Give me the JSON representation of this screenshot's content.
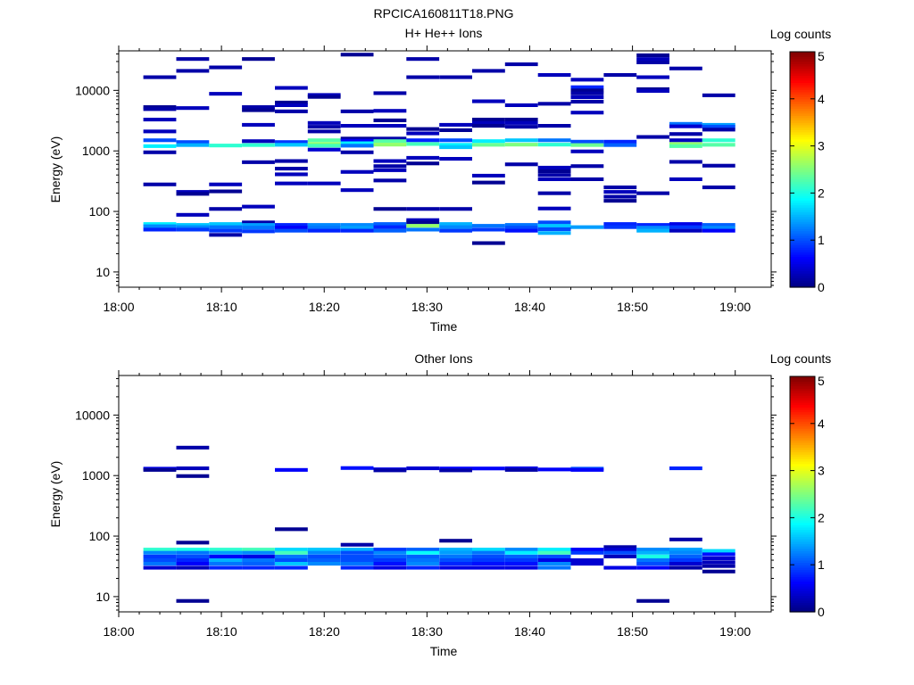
{
  "figure_title": "RPCICA160811T18.PNG",
  "colorbar": {
    "label": "Log counts",
    "ticks": [
      0,
      1,
      2,
      3,
      4,
      5
    ],
    "range": [
      0,
      5
    ],
    "colormap": "jet",
    "colors": [
      "#00007f",
      "#0000ff",
      "#007fff",
      "#00ffff",
      "#7fff7f",
      "#ffff00",
      "#ff7f00",
      "#ff0000",
      "#7f0000"
    ]
  },
  "chart_data": [
    {
      "type": "heatmap",
      "title": "H+ He++ Ions",
      "xlabel": "Time",
      "ylabel": "Energy (eV)",
      "x_ticks": [
        "18:00",
        "18:10",
        "18:20",
        "18:30",
        "18:40",
        "18:50",
        "19:00"
      ],
      "x_range_min": [
        0,
        63.5
      ],
      "y_scale": "log",
      "y_ticks": [
        "10",
        "100",
        "1000",
        "10000"
      ],
      "y_range": [
        5.6,
        45000
      ],
      "bin_width_min": 3.2,
      "bins": [
        {
          "t": 2.4,
          "e": [
            16500,
            5300,
            4900,
            3300,
            2100,
            1500,
            1200,
            950,
            280,
            62,
            57,
            50
          ],
          "c": [
            0.2,
            0.1,
            0.2,
            0.3,
            0.3,
            1.0,
            1.8,
            0.2,
            0.2,
            1.8,
            1.3,
            0.8
          ]
        },
        {
          "t": 5.6,
          "e": [
            33000,
            21000,
            5100,
            1400,
            1250,
            210,
            195,
            88,
            60,
            55,
            50
          ],
          "c": [
            0.2,
            0.2,
            0.3,
            1.0,
            1.5,
            0.3,
            0.1,
            0.3,
            1.6,
            1.3,
            0.9
          ]
        },
        {
          "t": 8.8,
          "e": [
            24000,
            8800,
            1230,
            280,
            215,
            110,
            62,
            55,
            48,
            41
          ],
          "c": [
            0.2,
            0.3,
            2.1,
            0.3,
            0.1,
            0.2,
            1.6,
            1.2,
            0.9,
            0.2
          ]
        },
        {
          "t": 12.0,
          "e": [
            33000,
            5300,
            4700,
            2700,
            1450,
            1250,
            650,
            120,
            66,
            60,
            54,
            47
          ],
          "c": [
            0.1,
            0.2,
            0.1,
            0.3,
            0.3,
            2.1,
            0.2,
            0.3,
            0.2,
            1.4,
            1.2,
            0.9
          ]
        },
        {
          "t": 15.2,
          "e": [
            11000,
            6300,
            5700,
            4500,
            1400,
            1260,
            680,
            510,
            410,
            290,
            60,
            54,
            48
          ],
          "c": [
            0.3,
            0.1,
            0.3,
            0.2,
            0.9,
            1.6,
            0.2,
            0.2,
            0.3,
            0.3,
            0.8,
            0.6,
            1.0
          ]
        },
        {
          "t": 18.4,
          "e": [
            8400,
            7800,
            2900,
            2500,
            2100,
            1500,
            1300,
            1220,
            1050,
            290,
            60,
            54,
            48
          ],
          "c": [
            0.3,
            0.1,
            0.3,
            0.2,
            0.2,
            2.3,
            2.6,
            2.2,
            0.4,
            0.3,
            1.3,
            1.2,
            0.8
          ]
        },
        {
          "t": 21.6,
          "e": [
            39000,
            4500,
            2600,
            1600,
            1480,
            1340,
            1220,
            950,
            450,
            225,
            60,
            54,
            48
          ],
          "c": [
            0.1,
            0.2,
            0.3,
            0.1,
            0.6,
            1.8,
            1.2,
            0.2,
            0.3,
            0.3,
            1.3,
            1.4,
            0.8
          ]
        },
        {
          "t": 24.8,
          "e": [
            9000,
            4600,
            3200,
            2600,
            1600,
            1450,
            1270,
            680,
            560,
            480,
            325,
            110,
            62,
            55,
            48
          ],
          "c": [
            0.2,
            0.3,
            0.1,
            0.3,
            0.2,
            2.3,
            2.6,
            0.3,
            0.2,
            0.3,
            0.2,
            0.1,
            1.1,
            0.8,
            1.1
          ]
        },
        {
          "t": 28.0,
          "e": [
            33000,
            16500,
            2300,
            1950,
            1500,
            1300,
            770,
            620,
            110,
            72,
            66,
            58,
            50
          ],
          "c": [
            0.2,
            0.2,
            0.1,
            0.3,
            0.8,
            2.2,
            0.3,
            0.1,
            0.2,
            0.3,
            0.1,
            2.6,
            1.2
          ]
        },
        {
          "t": 31.2,
          "e": [
            16500,
            2700,
            2200,
            1500,
            1260,
            1150,
            740,
            110,
            62,
            55,
            48
          ],
          "c": [
            0.2,
            0.3,
            0.1,
            1.0,
            1.8,
            1.6,
            0.3,
            0.2,
            1.5,
            1.3,
            0.9
          ]
        },
        {
          "t": 34.4,
          "e": [
            21000,
            6600,
            3300,
            2900,
            2600,
            1450,
            1260,
            390,
            300,
            58,
            50,
            30
          ],
          "c": [
            0.2,
            0.3,
            0.1,
            0.3,
            0.1,
            1.8,
            2.4,
            0.3,
            0.1,
            1.2,
            0.9,
            0.1
          ]
        },
        {
          "t": 37.6,
          "e": [
            27000,
            5700,
            3300,
            2900,
            2500,
            1500,
            1270,
            600,
            60,
            54,
            48
          ],
          "c": [
            0.2,
            0.3,
            0.1,
            0.3,
            0.2,
            1.6,
            2.5,
            0.2,
            1.2,
            1.0,
            0.7
          ]
        },
        {
          "t": 40.8,
          "e": [
            18000,
            6000,
            2600,
            1500,
            1270,
            530,
            460,
            400,
            340,
            200,
            112,
            66,
            58,
            51,
            44
          ],
          "c": [
            0.3,
            0.2,
            0.2,
            1.2,
            2.1,
            0.3,
            0.1,
            0.2,
            0.3,
            0.2,
            0.3,
            1.0,
            1.6,
            1.0,
            1.5
          ]
        },
        {
          "t": 44.0,
          "e": [
            15000,
            11300,
            10000,
            8900,
            7700,
            6500,
            4300,
            1420,
            1250,
            980,
            560,
            340,
            55
          ],
          "c": [
            0.3,
            0.8,
            0.1,
            0.2,
            0.3,
            0.2,
            0.3,
            1.0,
            2.4,
            0.3,
            0.2,
            0.2,
            1.4
          ]
        },
        {
          "t": 47.2,
          "e": [
            18000,
            1420,
            1250,
            250,
            210,
            175,
            150,
            62,
            55
          ],
          "c": [
            0.2,
            0.8,
            1.1,
            0.2,
            0.3,
            0.2,
            0.1,
            0.8,
            0.9
          ]
        },
        {
          "t": 50.4,
          "e": [
            38000,
            33000,
            29000,
            16500,
            10500,
            9800,
            1700,
            200,
            60,
            54,
            48
          ],
          "c": [
            0.1,
            0.3,
            0.2,
            0.3,
            0.1,
            0.3,
            0.2,
            0.2,
            0.8,
            1.3,
            1.5
          ]
        },
        {
          "t": 53.6,
          "e": [
            23000,
            2800,
            2550,
            1900,
            1500,
            1300,
            1200,
            660,
            340,
            62,
            55,
            48
          ],
          "c": [
            0.2,
            1.2,
            0.4,
            0.2,
            0.3,
            2.6,
            2.3,
            0.2,
            0.3,
            0.5,
            0.9,
            0.3
          ]
        },
        {
          "t": 56.8,
          "e": [
            8300,
            2700,
            2500,
            2250,
            1500,
            1260,
            570,
            250,
            60,
            54,
            48
          ],
          "c": [
            0.2,
            1.4,
            1.0,
            0.2,
            2.1,
            2.3,
            0.2,
            0.2,
            1.1,
            1.3,
            0.6
          ]
        }
      ]
    },
    {
      "type": "heatmap",
      "title": "Other Ions",
      "xlabel": "Time",
      "ylabel": "Energy (eV)",
      "x_ticks": [
        "18:00",
        "18:10",
        "18:20",
        "18:30",
        "18:40",
        "18:50",
        "19:00"
      ],
      "x_range_min": [
        0,
        63.5
      ],
      "y_scale": "log",
      "y_ticks": [
        "10",
        "100",
        "1000",
        "10000"
      ],
      "y_range": [
        5.6,
        45000
      ],
      "bin_width_min": 3.2,
      "bins": [
        {
          "t": 2.4,
          "e": [
            1300,
            1240,
            60,
            53,
            46,
            40,
            35,
            30
          ],
          "c": [
            0.5,
            0.1,
            2.1,
            1.3,
            0.9,
            1.0,
            1.2,
            0.4
          ]
        },
        {
          "t": 5.6,
          "e": [
            2900,
            1320,
            980,
            78,
            60,
            53,
            46,
            40,
            35,
            30,
            8.5
          ],
          "c": [
            0.2,
            0.3,
            0.1,
            0.1,
            2.0,
            1.2,
            1.0,
            0.8,
            0.6,
            0.3,
            0.1
          ]
        },
        {
          "t": 8.8,
          "e": [
            60,
            53,
            46,
            40,
            35,
            30
          ],
          "c": [
            2.1,
            1.4,
            0.6,
            1.5,
            1.2,
            0.8
          ]
        },
        {
          "t": 12.0,
          "e": [
            60,
            53,
            46,
            40,
            35,
            30
          ],
          "c": [
            2.2,
            1.3,
            0.5,
            1.2,
            1.1,
            0.8
          ]
        },
        {
          "t": 15.2,
          "e": [
            1240,
            130,
            60,
            53,
            46,
            40,
            35,
            30
          ],
          "c": [
            0.6,
            0.1,
            1.7,
            2.2,
            1.2,
            1.0,
            1.6,
            0.8
          ]
        },
        {
          "t": 18.4,
          "e": [
            60,
            53,
            46,
            40,
            35
          ],
          "c": [
            1.6,
            1.3,
            1.0,
            1.1,
            1.3
          ]
        },
        {
          "t": 21.6,
          "e": [
            1330,
            72,
            60,
            53,
            46,
            40,
            35,
            30
          ],
          "c": [
            0.7,
            0.2,
            1.5,
            1.0,
            1.0,
            1.0,
            1.2,
            0.8
          ]
        },
        {
          "t": 24.8,
          "e": [
            1270,
            1220,
            60,
            53,
            46,
            40,
            35,
            30
          ],
          "c": [
            0.5,
            0.2,
            0.9,
            1.3,
            1.1,
            0.9,
            0.7,
            0.5
          ]
        },
        {
          "t": 28.0,
          "e": [
            1320,
            60,
            53,
            46,
            40,
            35,
            30
          ],
          "c": [
            0.4,
            1.1,
            1.9,
            1.1,
            1.2,
            1.3,
            0.8
          ]
        },
        {
          "t": 31.2,
          "e": [
            1310,
            1220,
            84,
            60,
            53,
            46,
            40,
            35,
            30
          ],
          "c": [
            0.6,
            0.2,
            0.1,
            1.5,
            1.4,
            1.2,
            1.0,
            0.8,
            0.5
          ]
        },
        {
          "t": 34.4,
          "e": [
            1310,
            60,
            53,
            46,
            40,
            35,
            30
          ],
          "c": [
            0.6,
            1.7,
            1.2,
            1.0,
            0.9,
            0.7,
            0.5
          ]
        },
        {
          "t": 37.6,
          "e": [
            1320,
            1240,
            60,
            53,
            46,
            40,
            35,
            30
          ],
          "c": [
            0.5,
            0.2,
            1.3,
            1.8,
            1.1,
            0.9,
            0.7,
            0.5
          ]
        },
        {
          "t": 40.8,
          "e": [
            1260,
            60,
            53,
            46,
            40,
            35,
            30
          ],
          "c": [
            0.6,
            1.8,
            2.2,
            1.0,
            0.5,
            1.3,
            1.2
          ]
        },
        {
          "t": 44.0,
          "e": [
            1300,
            1240,
            60,
            53,
            40,
            35
          ],
          "c": [
            1.0,
            0.6,
            0.6,
            0.9,
            0.4,
            0.4
          ]
        },
        {
          "t": 47.2,
          "e": [
            66,
            60,
            53,
            46,
            30
          ],
          "c": [
            0.2,
            0.4,
            1.0,
            0.3,
            0.5
          ]
        },
        {
          "t": 50.4,
          "e": [
            60,
            53,
            46,
            40,
            35,
            30,
            8.5
          ],
          "c": [
            1.3,
            1.5,
            2.0,
            1.2,
            1.0,
            0.6,
            0.1
          ]
        },
        {
          "t": 53.6,
          "e": [
            1320,
            88,
            60,
            53,
            46,
            40,
            35,
            30
          ],
          "c": [
            0.8,
            0.2,
            1.4,
            1.3,
            1.1,
            0.9,
            0.4,
            0.2
          ]
        },
        {
          "t": 56.8,
          "e": [
            57,
            50,
            43,
            37,
            32,
            26
          ],
          "c": [
            1.7,
            0.7,
            0.4,
            0.3,
            0.2,
            0.1
          ]
        }
      ]
    }
  ]
}
